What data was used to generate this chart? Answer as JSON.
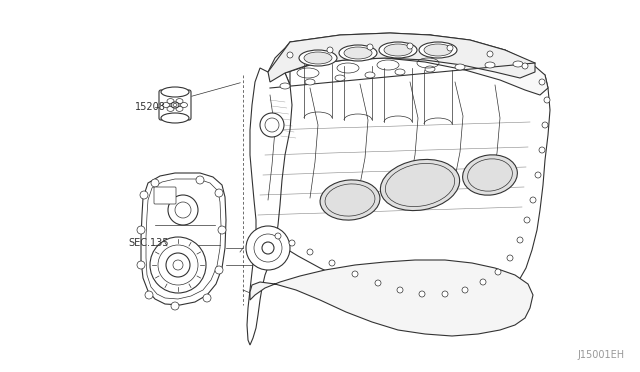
{
  "background_color": "#ffffff",
  "line_color": "#333333",
  "label_15208": "15208",
  "label_sec135": "SEC.135",
  "watermark": "J15001EH",
  "fig_width": 6.4,
  "fig_height": 3.72,
  "dpi": 100,
  "lw_main": 0.8,
  "lw_thin": 0.5
}
